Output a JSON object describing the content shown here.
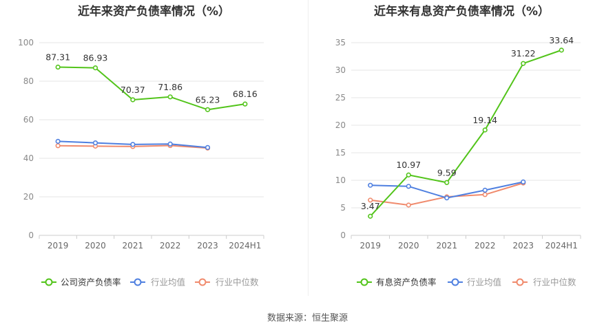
{
  "source_label": "数据来源：恒生聚源",
  "chart_data": [
    {
      "type": "line",
      "title": "近年来资产负债率情况（%）",
      "categories": [
        "2019",
        "2020",
        "2021",
        "2022",
        "2023",
        "2024H1"
      ],
      "ylim": [
        0,
        100
      ],
      "yticks": [
        0,
        20,
        40,
        60,
        80,
        100
      ],
      "grid": true,
      "legend_position": "bottom",
      "series": [
        {
          "name": "公司资产负债率",
          "color": "#52c41a",
          "values": [
            87.31,
            86.93,
            70.37,
            71.86,
            65.23,
            68.16
          ],
          "labels": [
            "87.31",
            "86.93",
            "70.37",
            "71.86",
            "65.23",
            "68.16"
          ]
        },
        {
          "name": "行业均值",
          "color": "#4e7fe0",
          "values": [
            48.8,
            48.0,
            47.2,
            47.4,
            45.6,
            null
          ]
        },
        {
          "name": "行业中位数",
          "color": "#f08a6c",
          "values": [
            46.5,
            46.3,
            46.1,
            46.6,
            45.3,
            null
          ]
        }
      ]
    },
    {
      "type": "line",
      "title": "近年来有息资产负债率情况（%）",
      "categories": [
        "2019",
        "2020",
        "2021",
        "2022",
        "2023",
        "2024H1"
      ],
      "ylim": [
        0,
        35
      ],
      "yticks": [
        0,
        5,
        10,
        15,
        20,
        25,
        30,
        35
      ],
      "grid": true,
      "legend_position": "bottom",
      "series": [
        {
          "name": "有息资产负债率",
          "color": "#52c41a",
          "values": [
            3.47,
            10.97,
            9.59,
            19.14,
            31.22,
            33.64
          ],
          "labels": [
            "3.47",
            "10.97",
            "9.59",
            "19.14",
            "31.22",
            "33.64"
          ]
        },
        {
          "name": "行业均值",
          "color": "#4e7fe0",
          "values": [
            9.1,
            8.9,
            6.8,
            8.2,
            9.7,
            null
          ]
        },
        {
          "name": "行业中位数",
          "color": "#f08a6c",
          "values": [
            6.4,
            5.5,
            7.0,
            7.4,
            9.5,
            null
          ]
        }
      ]
    }
  ]
}
